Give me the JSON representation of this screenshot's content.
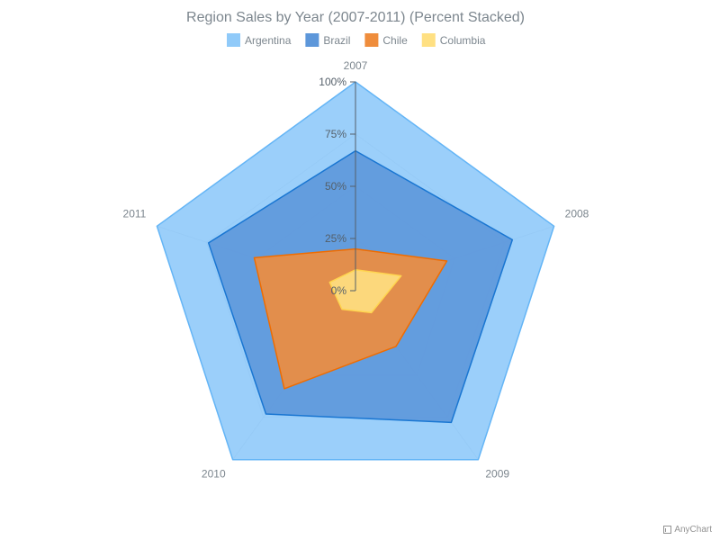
{
  "chart_data": {
    "type": "radar",
    "title": "Region Sales by Year (2007-2011) (Percent Stacked)",
    "categories": [
      "2007",
      "2008",
      "2009",
      "2010",
      "2011"
    ],
    "stack_mode": "percent",
    "y_range": [
      0,
      100
    ],
    "y_ticks": [
      "0%",
      "25%",
      "50%",
      "75%",
      "100%"
    ],
    "y_tick_values": [
      0,
      25,
      50,
      75,
      100
    ],
    "legend_position": "top",
    "series": [
      {
        "name": "Columbia",
        "color": "#ffe082",
        "stroke": "#ffd54f",
        "cumulative": [
          10,
          23,
          13,
          11,
          13
        ]
      },
      {
        "name": "Chile",
        "color": "#ef8d3c",
        "stroke": "#ef6c00",
        "cumulative": [
          20,
          46,
          33,
          58,
          51
        ]
      },
      {
        "name": "Brazil",
        "color": "#5d97da",
        "stroke": "#1976d2",
        "cumulative": [
          67,
          79,
          78,
          73,
          74
        ]
      },
      {
        "name": "Argentina",
        "color": "#90caf9",
        "stroke": "#64b5f6",
        "cumulative": [
          100,
          100,
          100,
          100,
          100
        ]
      }
    ],
    "legend_order": [
      "Argentina",
      "Brazil",
      "Chile",
      "Columbia"
    ]
  },
  "credits": "AnyChart"
}
